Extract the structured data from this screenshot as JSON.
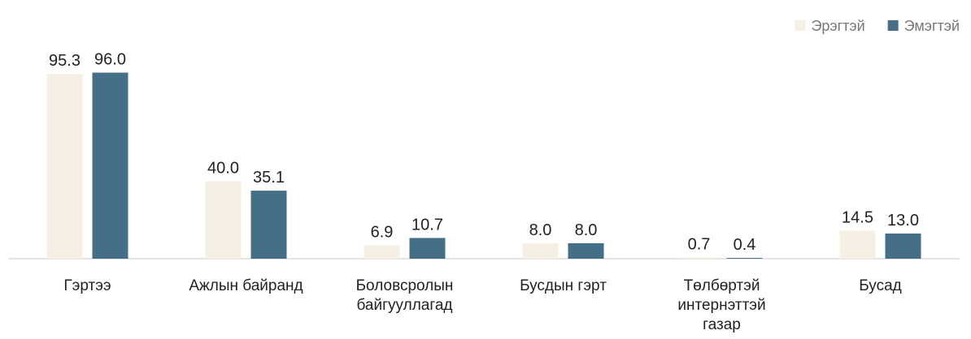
{
  "chart_data": {
    "type": "bar",
    "categories": [
      [
        "Гэртээ"
      ],
      [
        "Ажлын байранд"
      ],
      [
        "Боловсролын",
        "байгууллагад"
      ],
      [
        "Бусдын гэрт"
      ],
      [
        "Төлбөртэй",
        "интернэттэй",
        "газар"
      ],
      [
        "Бусад"
      ]
    ],
    "series": [
      {
        "name": "Эрэгтэй",
        "color": "#f6f0e4",
        "values": [
          95.3,
          40.0,
          6.9,
          8.0,
          0.7,
          14.5
        ]
      },
      {
        "name": "Эмэгтэй",
        "color": "#456f86",
        "values": [
          96.0,
          35.1,
          10.7,
          8.0,
          0.4,
          13.0
        ]
      }
    ],
    "ylim": [
      0,
      100
    ],
    "value_format": "0.0",
    "grid": false,
    "legend_position": "top-right"
  }
}
